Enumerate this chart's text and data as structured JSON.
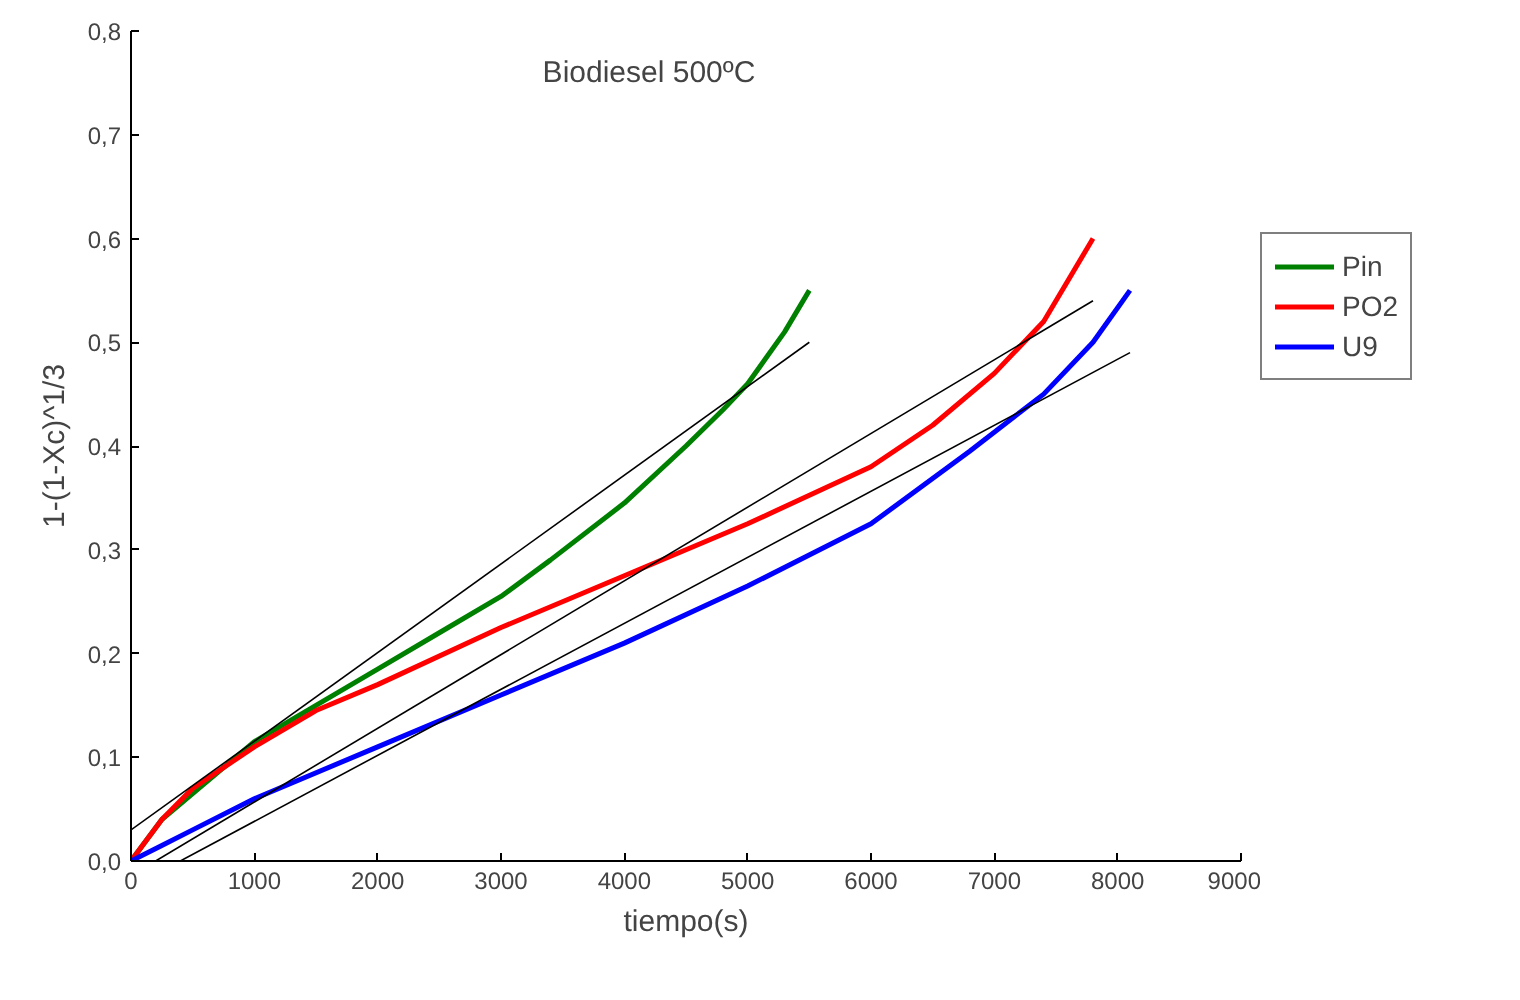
{
  "chart_data": {
    "type": "line",
    "title": "Biodiesel 500ºC",
    "xlabel": "tiempo(s)",
    "ylabel": "1-(1-Xc)^1/3",
    "xlim": [
      0,
      9000
    ],
    "ylim": [
      0,
      0.8
    ],
    "xticks": [
      0,
      1000,
      2000,
      3000,
      4000,
      5000,
      6000,
      7000,
      8000,
      9000
    ],
    "yticks": [
      {
        "value": 0,
        "label": "0,0"
      },
      {
        "value": 0.1,
        "label": "0,1"
      },
      {
        "value": 0.2,
        "label": "0,2"
      },
      {
        "value": 0.3,
        "label": "0,3"
      },
      {
        "value": 0.4,
        "label": "0,4"
      },
      {
        "value": 0.5,
        "label": "0,5"
      },
      {
        "value": 0.6,
        "label": "0,6"
      },
      {
        "value": 0.7,
        "label": "0,7"
      },
      {
        "value": 0.8,
        "label": "0,8"
      }
    ],
    "grid": false,
    "legend": "right",
    "line_style": "solid",
    "series": [
      {
        "name": "Pin",
        "color": "#008000",
        "x": [
          0,
          250,
          500,
          1000,
          1500,
          2000,
          2500,
          3000,
          3400,
          4000,
          4500,
          4800,
          5000,
          5300,
          5500
        ],
        "values": [
          0,
          0.04,
          0.065,
          0.115,
          0.15,
          0.185,
          0.22,
          0.255,
          0.29,
          0.345,
          0.4,
          0.435,
          0.46,
          0.51,
          0.55
        ]
      },
      {
        "name": "PO2",
        "color": "#ff0000",
        "x": [
          0,
          250,
          500,
          1000,
          1500,
          2000,
          3000,
          4000,
          5000,
          6000,
          6500,
          7000,
          7400,
          7800
        ],
        "values": [
          0,
          0.04,
          0.07,
          0.11,
          0.145,
          0.17,
          0.225,
          0.275,
          0.325,
          0.38,
          0.42,
          0.47,
          0.52,
          0.6
        ]
      },
      {
        "name": "U9",
        "color": "#0000ff",
        "x": [
          0,
          250,
          500,
          1000,
          2000,
          3000,
          4000,
          5000,
          6000,
          6800,
          7400,
          7800,
          8100
        ],
        "values": [
          0,
          0.015,
          0.03,
          0.06,
          0.11,
          0.16,
          0.21,
          0.265,
          0.325,
          0.395,
          0.45,
          0.5,
          0.55
        ]
      },
      {
        "color": "#000000",
        "x": [
          0,
          5500
        ],
        "values": [
          0.03,
          0.5
        ]
      },
      {
        "color": "#000000",
        "x": [
          200,
          7800
        ],
        "values": [
          0,
          0.54
        ]
      },
      {
        "color": "#000000",
        "x": [
          400,
          8100
        ],
        "values": [
          0,
          0.49
        ]
      }
    ]
  }
}
